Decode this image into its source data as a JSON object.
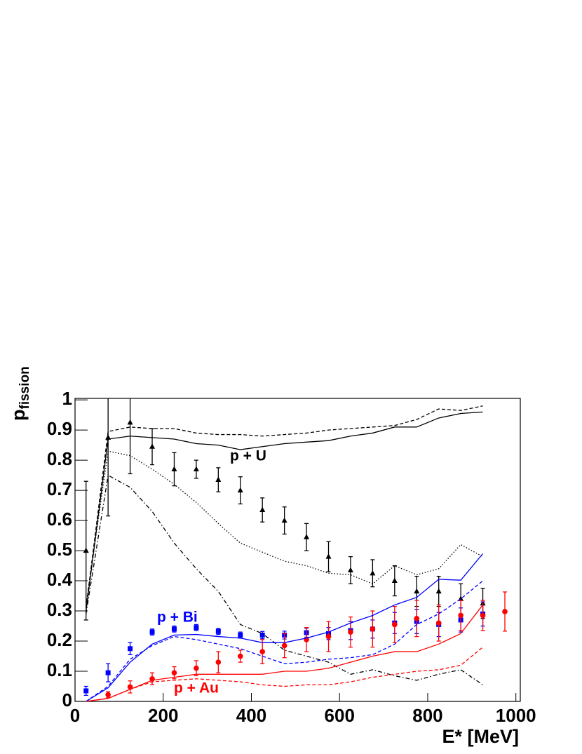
{
  "chart_data": {
    "type": "line",
    "xlabel": "E* [MeV]",
    "ylabel": "p",
    "ylabel_sub": "fission",
    "xlim": [
      0,
      1010
    ],
    "ylim": [
      0,
      1.005
    ],
    "xticks": [
      0,
      200,
      400,
      600,
      800,
      1000
    ],
    "yticks": [
      0,
      0.1,
      0.2,
      0.3,
      0.4,
      0.5,
      0.6,
      0.7,
      0.8,
      0.9,
      1
    ],
    "x": [
      25,
      75,
      125,
      175,
      225,
      275,
      325,
      375,
      425,
      475,
      525,
      575,
      625,
      675,
      725,
      775,
      825,
      875,
      925,
      975
    ],
    "annotations": [
      {
        "text": "p + U",
        "color": "#000000"
      },
      {
        "text": "p + Bi",
        "color": "#0000ff"
      },
      {
        "text": "p + Au",
        "color": "#ff0000"
      }
    ],
    "series": [
      {
        "color": "#000000",
        "style": "points",
        "marker": "triangle",
        "values": [
          0.5,
          0.875,
          0.925,
          0.845,
          0.77,
          0.77,
          0.735,
          0.7,
          0.635,
          0.6,
          0.545,
          0.48,
          0.435,
          0.425,
          0.4,
          0.365,
          0.365,
          0.34,
          0.325,
          null
        ],
        "errors": [
          0.23,
          0.26,
          0.17,
          0.06,
          0.055,
          0.03,
          0.04,
          0.045,
          0.04,
          0.045,
          0.045,
          0.05,
          0.045,
          0.045,
          0.05,
          0.05,
          0.05,
          0.05,
          0.05,
          null
        ]
      },
      {
        "color": "#0000ff",
        "style": "points",
        "marker": "square",
        "values": [
          0.035,
          0.095,
          0.175,
          0.23,
          0.24,
          0.245,
          0.232,
          0.22,
          0.22,
          0.22,
          0.228,
          0.225,
          0.235,
          0.24,
          0.26,
          0.265,
          0.255,
          0.27,
          0.29,
          null
        ],
        "errors": [
          0.015,
          0.03,
          0.02,
          0.01,
          0.01,
          0.01,
          0.01,
          0.01,
          0.012,
          0.013,
          0.015,
          0.02,
          0.03,
          0.03,
          0.035,
          0.04,
          0.04,
          0.04,
          0.04,
          null
        ]
      },
      {
        "color": "#ff0000",
        "style": "points",
        "marker": "circle",
        "values": [
          null,
          0.022,
          0.048,
          0.075,
          0.095,
          0.11,
          0.13,
          0.15,
          0.165,
          0.185,
          0.205,
          0.215,
          0.23,
          0.24,
          0.255,
          0.275,
          0.26,
          0.285,
          0.285,
          0.298
        ],
        "errors": [
          null,
          0.01,
          0.02,
          0.02,
          0.02,
          0.025,
          0.035,
          0.02,
          0.04,
          0.04,
          0.04,
          0.05,
          0.05,
          0.06,
          0.06,
          0.06,
          0.06,
          0.05,
          0.05,
          0.065
        ]
      },
      {
        "color": "#000000",
        "style": "solid",
        "values": [
          0.3,
          0.87,
          0.88,
          0.875,
          0.87,
          0.855,
          0.85,
          0.835,
          0.845,
          0.855,
          0.86,
          0.865,
          0.88,
          0.89,
          0.91,
          0.91,
          0.94,
          0.955,
          0.96,
          null
        ]
      },
      {
        "color": "#000000",
        "style": "dashed",
        "values": [
          0.31,
          0.895,
          0.91,
          0.905,
          0.905,
          0.89,
          0.885,
          0.885,
          0.88,
          0.885,
          0.89,
          0.9,
          0.905,
          0.91,
          0.915,
          0.935,
          0.97,
          0.965,
          0.98,
          null
        ]
      },
      {
        "color": "#000000",
        "style": "dotted",
        "values": [
          0.32,
          0.83,
          0.815,
          0.77,
          0.72,
          0.66,
          0.59,
          0.525,
          0.495,
          0.465,
          0.45,
          0.425,
          0.42,
          0.39,
          0.45,
          0.42,
          0.44,
          0.52,
          0.48,
          null
        ]
      },
      {
        "color": "#000000",
        "style": "dashdot",
        "values": [
          0.29,
          0.75,
          0.71,
          0.63,
          0.525,
          0.44,
          0.365,
          0.255,
          0.225,
          0.17,
          0.15,
          0.13,
          0.09,
          0.105,
          0.085,
          0.07,
          0.09,
          0.105,
          0.055,
          null
        ]
      },
      {
        "color": "#0000ff",
        "style": "solid",
        "values": [
          0,
          0.045,
          0.13,
          0.19,
          0.22,
          0.222,
          0.215,
          0.21,
          0.195,
          0.195,
          0.21,
          0.23,
          0.26,
          0.285,
          0.32,
          0.345,
          0.405,
          0.402,
          0.49,
          null
        ]
      },
      {
        "color": "#0000ff",
        "style": "dashed",
        "values": [
          0,
          0.05,
          0.14,
          0.185,
          0.215,
          0.205,
          0.19,
          0.175,
          0.15,
          0.125,
          0.13,
          0.14,
          0.145,
          0.155,
          0.19,
          0.255,
          0.29,
          0.34,
          0.4,
          null
        ]
      },
      {
        "color": "#ff0000",
        "style": "solid",
        "values": [
          0,
          0.01,
          0.04,
          0.07,
          0.08,
          0.09,
          0.09,
          0.09,
          0.09,
          0.1,
          0.1,
          0.11,
          0.13,
          0.15,
          0.165,
          0.165,
          0.19,
          0.225,
          0.32,
          null
        ]
      },
      {
        "color": "#ff0000",
        "style": "dashed",
        "values": [
          0,
          0.01,
          0.04,
          0.065,
          0.07,
          0.075,
          0.07,
          0.065,
          0.055,
          0.05,
          0.055,
          0.055,
          0.065,
          0.08,
          0.09,
          0.1,
          0.105,
          0.12,
          0.18,
          null
        ]
      }
    ]
  }
}
